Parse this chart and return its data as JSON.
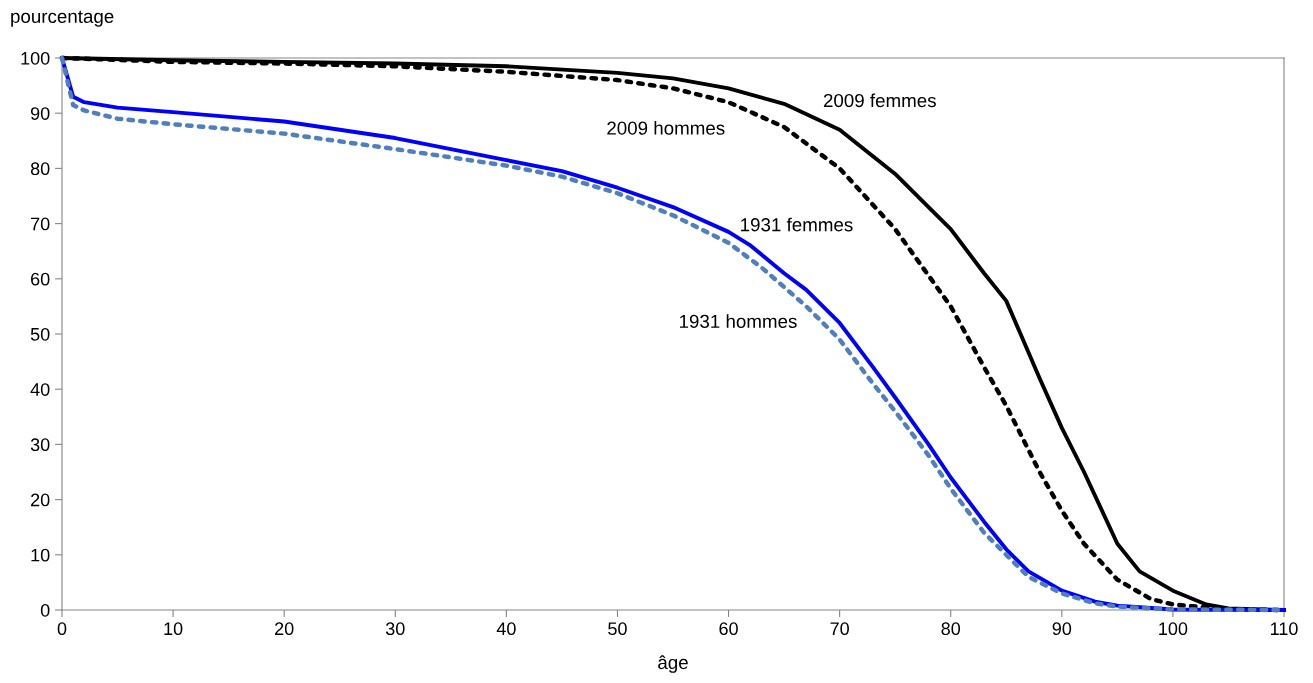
{
  "chart_data": {
    "type": "line",
    "xlabel": "âge",
    "ylabel": "pourcentage",
    "xlim": [
      0,
      110
    ],
    "ylim": [
      0,
      100
    ],
    "xticks": [
      0,
      10,
      20,
      30,
      40,
      50,
      60,
      70,
      80,
      90,
      100,
      110
    ],
    "yticks": [
      0,
      10,
      20,
      30,
      40,
      50,
      60,
      70,
      80,
      90,
      100
    ],
    "grid": false,
    "legend": false,
    "marker": "none",
    "series": [
      {
        "name": "2009 femmes",
        "color": "#000000",
        "line_style": "solid",
        "x": [
          0,
          10,
          20,
          30,
          40,
          50,
          55,
          60,
          65,
          70,
          75,
          78,
          80,
          83,
          85,
          88,
          90,
          92,
          95,
          97,
          100,
          103,
          105,
          110
        ],
        "values": [
          100,
          99.6,
          99.3,
          99,
          98.5,
          97.3,
          96.3,
          94.5,
          91.7,
          87,
          79,
          73,
          69,
          61,
          56,
          42,
          33,
          25,
          12,
          7,
          3.5,
          1,
          0.3,
          0
        ]
      },
      {
        "name": "2009 hommes",
        "color": "#000000",
        "line_style": "dotted",
        "x": [
          0,
          10,
          20,
          30,
          40,
          50,
          55,
          60,
          65,
          70,
          75,
          80,
          83,
          85,
          88,
          90,
          92,
          95,
          98,
          100,
          105,
          110
        ],
        "values": [
          100,
          99.3,
          99,
          98.5,
          97.5,
          96,
          94.5,
          92,
          87.5,
          80,
          69,
          55,
          44,
          37,
          25,
          18,
          12,
          5.5,
          2,
          1,
          0.1,
          0
        ]
      },
      {
        "name": "1931 femmes",
        "color": "#0000ff",
        "line_style": "solid",
        "x": [
          0,
          1,
          2,
          5,
          10,
          20,
          30,
          40,
          45,
          50,
          55,
          60,
          62,
          65,
          67,
          70,
          73,
          75,
          78,
          80,
          83,
          85,
          87,
          90,
          93,
          95,
          100,
          110
        ],
        "values": [
          100,
          93,
          92,
          91,
          90.2,
          88.5,
          85.5,
          81.5,
          79.5,
          76.5,
          73,
          68.5,
          66,
          61,
          58,
          52,
          44,
          38.5,
          30,
          24,
          16,
          11,
          7,
          3.5,
          1.5,
          0.8,
          0.1,
          0
        ]
      },
      {
        "name": "1931 hommes",
        "color": "#4f7fbf",
        "line_style": "dotted",
        "x": [
          0,
          1,
          2,
          5,
          10,
          20,
          30,
          40,
          45,
          50,
          55,
          60,
          63,
          65,
          67,
          70,
          73,
          75,
          78,
          80,
          83,
          85,
          87,
          90,
          93,
          95,
          100,
          110
        ],
        "values": [
          100,
          91.5,
          90.5,
          89,
          88,
          86.3,
          83.5,
          80.5,
          78.5,
          75.5,
          71.5,
          66.5,
          62,
          58.5,
          55,
          49,
          41,
          36,
          28,
          22,
          14,
          10,
          6,
          3,
          1.2,
          0.6,
          0.1,
          0
        ]
      }
    ]
  }
}
